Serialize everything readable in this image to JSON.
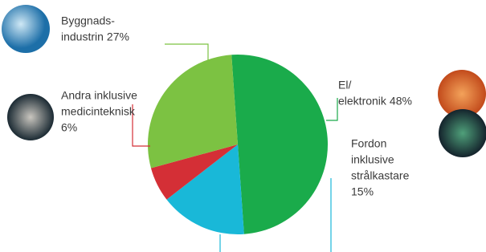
{
  "chart_data": {
    "type": "pie",
    "categories": [
      [
        "El/",
        "elektronik"
      ],
      [
        "Fordon",
        "inklusive",
        "strålkastare"
      ],
      [
        "Andra inklusive",
        "medicinteknisk"
      ],
      [
        "Byggnads-",
        "industrin"
      ]
    ],
    "values": [
      48,
      15,
      6,
      27
    ],
    "value_labels": [
      "48%",
      "15%",
      "6%",
      "27%"
    ],
    "colors": [
      "#1aab4b",
      "#19b8d8",
      "#d42f36",
      "#7cc242"
    ]
  }
}
